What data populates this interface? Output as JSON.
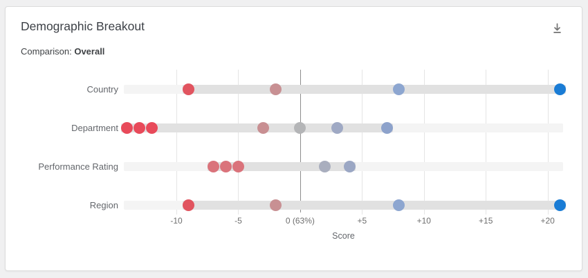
{
  "card": {
    "title": "Demographic Breakout",
    "comparison_label": "Comparison:",
    "comparison_value": "Overall",
    "download_icon": "download-icon",
    "colors": {
      "strong_negative": "#e84a5a",
      "negative": "#da737b",
      "slight_negative": "#c89093",
      "neutral": "#b4b5b7",
      "slight_positive": "#9fa9c4",
      "positive": "#8da6d0",
      "strong_positive": "#1a7cd5"
    }
  },
  "chart_data": {
    "type": "scatter",
    "subtype": "horizontal-dot-plot",
    "title": "Demographic Breakout",
    "comparison": "Overall",
    "xlabel": "Score",
    "xlim": [
      -14.25,
      21.25
    ],
    "grid": true,
    "zero_line": 0,
    "zero_label": "0 (63%)",
    "ticks": [
      {
        "value": -10,
        "label": "-10"
      },
      {
        "value": -5,
        "label": "-5"
      },
      {
        "value": 0,
        "label": "0 (63%)"
      },
      {
        "value": 5,
        "label": "+5"
      },
      {
        "value": 10,
        "label": "+10"
      },
      {
        "value": 15,
        "label": "+15"
      },
      {
        "value": 20,
        "label": "+20"
      }
    ],
    "rows": [
      {
        "label": "Country",
        "points": [
          {
            "value": -9,
            "color": "#e1545f"
          },
          {
            "value": -2,
            "color": "#c89093"
          },
          {
            "value": 8,
            "color": "#8da6d0"
          },
          {
            "value": 21,
            "color": "#1a7cd5"
          }
        ]
      },
      {
        "label": "Department",
        "points": [
          {
            "value": -14,
            "color": "#e84a5a"
          },
          {
            "value": -13,
            "color": "#e84a5a"
          },
          {
            "value": -12,
            "color": "#e84a5a"
          },
          {
            "value": -3,
            "color": "#c88f92"
          },
          {
            "value": 0,
            "color": "#b4b5b7"
          },
          {
            "value": 3,
            "color": "#9fa9c4"
          },
          {
            "value": 7,
            "color": "#8da2cb"
          }
        ]
      },
      {
        "label": "Performance Rating",
        "points": [
          {
            "value": -7,
            "color": "#da737b"
          },
          {
            "value": -6,
            "color": "#da737b"
          },
          {
            "value": -5,
            "color": "#da737b"
          },
          {
            "value": 2,
            "color": "#a9aebe"
          },
          {
            "value": 4,
            "color": "#9ba7c4"
          }
        ]
      },
      {
        "label": "Region",
        "points": [
          {
            "value": -9,
            "color": "#e1545f"
          },
          {
            "value": -2,
            "color": "#c89093"
          },
          {
            "value": 8,
            "color": "#8da6d0"
          },
          {
            "value": 21,
            "color": "#1a7cd5"
          }
        ]
      }
    ]
  }
}
